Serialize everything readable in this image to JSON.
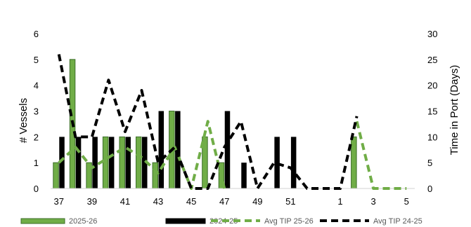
{
  "chart_data": {
    "type": "bar",
    "title": "",
    "categories": [
      "37",
      "38",
      "39",
      "40",
      "41",
      "42",
      "43",
      "44",
      "45",
      "46",
      "47",
      "48",
      "49",
      "50",
      "51",
      "52",
      "53",
      "1",
      "2",
      "3",
      "4",
      "5"
    ],
    "xtick_labels": [
      "37",
      "39",
      "41",
      "43",
      "45",
      "47",
      "49",
      "51",
      "1",
      "3",
      "5"
    ],
    "ylabel": "# Vessels",
    "y2label": "Time in Port (Days)",
    "ylim": [
      0,
      6
    ],
    "y2lim": [
      0,
      30
    ],
    "yticks": [
      "0",
      "1",
      "2",
      "3",
      "4",
      "5",
      "6"
    ],
    "y2ticks": [
      "0",
      "5",
      "10",
      "15",
      "20",
      "25",
      "30"
    ],
    "colors": {
      "green": "#70AD47",
      "green_edge": "#3C6E2A",
      "black": "#000000"
    },
    "series": [
      {
        "name": "2025-26",
        "type": "bar",
        "axis": "left",
        "values": [
          1,
          5,
          1,
          2,
          2,
          2,
          1,
          3,
          0,
          2,
          1,
          0,
          0,
          0,
          0,
          0,
          0,
          0,
          2,
          0,
          0,
          0
        ]
      },
      {
        "name": "2024-25",
        "type": "bar",
        "axis": "left",
        "values": [
          2,
          2,
          2,
          2,
          2,
          2,
          3,
          3,
          0,
          0,
          3,
          1,
          0,
          2,
          2,
          0,
          0,
          0,
          0,
          0,
          0,
          0
        ]
      },
      {
        "name": "Avg TIP 25-26",
        "type": "line",
        "axis": "right",
        "style": "dashed",
        "values": [
          5,
          8,
          4,
          6,
          8,
          6,
          3,
          8,
          0,
          13,
          0,
          null,
          null,
          null,
          null,
          null,
          null,
          null,
          13,
          0,
          0,
          0
        ]
      },
      {
        "name": "Avg TIP 24-25",
        "type": "line",
        "axis": "right",
        "style": "dashed",
        "values": [
          26,
          10,
          10,
          21,
          11,
          19,
          5,
          8,
          0,
          0,
          8,
          13,
          0,
          5,
          4,
          0,
          0,
          0,
          14,
          null,
          null,
          null
        ]
      }
    ],
    "legend_position": "bottom",
    "grid": false
  }
}
